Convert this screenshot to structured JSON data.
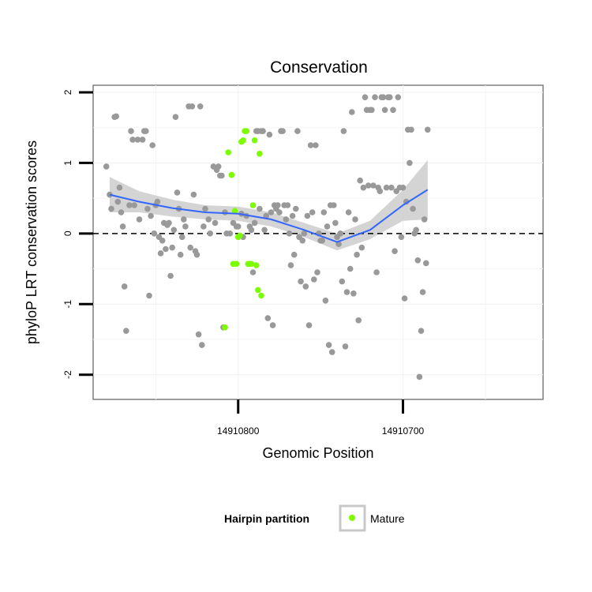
{
  "chart_data": {
    "type": "scatter",
    "title": "Conservation",
    "xlabel": "Genomic Position",
    "ylabel": "phyloP LRT conservation scores",
    "x_reversed": true,
    "xlim": [
      14910888,
      14910615
    ],
    "ylim": [
      -2.35,
      2.1
    ],
    "x_ticks": [
      14910800,
      14910700
    ],
    "x_tick_labels": [
      "14910800",
      "14910700"
    ],
    "y_ticks": [
      -2,
      -1,
      0,
      1,
      2
    ],
    "y_tick_labels": [
      "-2",
      "-1",
      "0",
      "1",
      "2"
    ],
    "reference_line": {
      "y": 0,
      "style": "dashed"
    },
    "grid": true,
    "colors": {
      "other": "#999999",
      "mature": "#7cfc00",
      "smooth": "#3366ff",
      "band": "#cccccc"
    },
    "legend": {
      "title": "Hairpin partition",
      "position": "bottom",
      "entries": [
        "Mature"
      ]
    },
    "series": [
      {
        "group": "other",
        "points": [
          [
            14910880,
            0.95
          ],
          [
            14910878,
            0.55
          ],
          [
            14910877,
            0.35
          ],
          [
            14910875,
            1.65
          ],
          [
            14910874,
            1.66
          ],
          [
            14910873,
            0.45
          ],
          [
            14910872,
            0.65
          ],
          [
            14910871,
            0.3
          ],
          [
            14910870,
            0.1
          ],
          [
            14910869,
            -0.75
          ],
          [
            14910868,
            -1.38
          ],
          [
            14910866,
            0.4
          ],
          [
            14910865,
            1.45
          ],
          [
            14910864,
            1.33
          ],
          [
            14910863,
            0.4
          ],
          [
            14910861,
            1.33
          ],
          [
            14910860,
            0.2
          ],
          [
            14910858,
            1.33
          ],
          [
            14910857,
            1.45
          ],
          [
            14910856,
            1.45
          ],
          [
            14910855,
            0.35
          ],
          [
            14910854,
            -0.88
          ],
          [
            14910853,
            0.25
          ],
          [
            14910852,
            1.25
          ],
          [
            14910851,
            0.0
          ],
          [
            14910850,
            0.4
          ],
          [
            14910849,
            0.45
          ],
          [
            14910848,
            -0.05
          ],
          [
            14910847,
            -0.28
          ],
          [
            14910846,
            -0.1
          ],
          [
            14910845,
            0.15
          ],
          [
            14910844,
            -0.22
          ],
          [
            14910843,
            0.12
          ],
          [
            14910842,
            0.15
          ],
          [
            14910841,
            -0.6
          ],
          [
            14910840,
            -0.2
          ],
          [
            14910839,
            0.05
          ],
          [
            14910838,
            1.65
          ],
          [
            14910837,
            0.58
          ],
          [
            14910836,
            0.35
          ],
          [
            14910835,
            -0.3
          ],
          [
            14910834,
            -0.05
          ],
          [
            14910833,
            0.2
          ],
          [
            14910832,
            0.1
          ],
          [
            14910830,
            1.8
          ],
          [
            14910829,
            -0.2
          ],
          [
            14910828,
            1.8
          ],
          [
            14910827,
            0.55
          ],
          [
            14910826,
            -0.25
          ],
          [
            14910825,
            -0.3
          ],
          [
            14910824,
            -1.43
          ],
          [
            14910823,
            1.8
          ],
          [
            14910822,
            -1.58
          ],
          [
            14910821,
            0.1
          ],
          [
            14910820,
            0.35
          ],
          [
            14910818,
            0.2
          ],
          [
            14910817,
            0.0
          ],
          [
            14910815,
            0.95
          ],
          [
            14910814,
            0.15
          ],
          [
            14910813,
            0.9
          ],
          [
            14910812,
            0.95
          ],
          [
            14910811,
            0.82
          ],
          [
            14910810,
            0.82
          ],
          [
            14910809,
            -1.33
          ],
          [
            14910808,
            0.3
          ],
          [
            14910807,
            0.0
          ],
          [
            14910805,
            0.0
          ],
          [
            14910803,
            0.15
          ],
          [
            14910801,
            0.1
          ],
          [
            14910800,
            0.1
          ],
          [
            14910798,
            0.28
          ],
          [
            14910797,
            -0.05
          ],
          [
            14910795,
            0.25
          ],
          [
            14910793,
            0.1
          ],
          [
            14910792,
            0.05
          ],
          [
            14910791,
            -0.55
          ],
          [
            14910790,
            0.15
          ],
          [
            14910789,
            1.45
          ],
          [
            14910788,
            1.45
          ],
          [
            14910787,
            0.35
          ],
          [
            14910786,
            1.45
          ],
          [
            14910785,
            1.45
          ],
          [
            14910784,
            0.05
          ],
          [
            14910783,
            0.25
          ],
          [
            14910782,
            -1.2
          ],
          [
            14910781,
            1.4
          ],
          [
            14910780,
            0.3
          ],
          [
            14910779,
            -1.3
          ],
          [
            14910778,
            0.4
          ],
          [
            14910777,
            0.35
          ],
          [
            14910776,
            0.4
          ],
          [
            14910775,
            0.3
          ],
          [
            14910774,
            1.45
          ],
          [
            14910773,
            1.45
          ],
          [
            14910772,
            0.4
          ],
          [
            14910771,
            0.2
          ],
          [
            14910770,
            0.4
          ],
          [
            14910769,
            0.0
          ],
          [
            14910768,
            -0.45
          ],
          [
            14910767,
            0.25
          ],
          [
            14910766,
            -0.3
          ],
          [
            14910765,
            0.35
          ],
          [
            14910764,
            1.45
          ],
          [
            14910763,
            -0.05
          ],
          [
            14910762,
            -0.68
          ],
          [
            14910761,
            -0.1
          ],
          [
            14910760,
            0.0
          ],
          [
            14910759,
            -0.75
          ],
          [
            14910758,
            0.25
          ],
          [
            14910757,
            -1.3
          ],
          [
            14910756,
            1.25
          ],
          [
            14910755,
            0.3
          ],
          [
            14910754,
            -0.65
          ],
          [
            14910753,
            1.25
          ],
          [
            14910752,
            -0.55
          ],
          [
            14910751,
            0.0
          ],
          [
            14910750,
            -0.1
          ],
          [
            14910749,
            -0.1
          ],
          [
            14910748,
            0.3
          ],
          [
            14910747,
            -0.95
          ],
          [
            14910746,
            0.1
          ],
          [
            14910745,
            -1.58
          ],
          [
            14910744,
            0.4
          ],
          [
            14910743,
            -1.68
          ],
          [
            14910742,
            0.4
          ],
          [
            14910741,
            0.15
          ],
          [
            14910740,
            -0.05
          ],
          [
            14910739,
            -0.15
          ],
          [
            14910738,
            0.0
          ],
          [
            14910737,
            -0.68
          ],
          [
            14910736,
            1.45
          ],
          [
            14910735,
            -1.6
          ],
          [
            14910734,
            -0.83
          ],
          [
            14910733,
            0.3
          ],
          [
            14910732,
            -0.5
          ],
          [
            14910731,
            1.72
          ],
          [
            14910730,
            -0.85
          ],
          [
            14910729,
            0.2
          ],
          [
            14910728,
            -0.3
          ],
          [
            14910727,
            -1.23
          ],
          [
            14910726,
            0.75
          ],
          [
            14910725,
            -0.2
          ],
          [
            14910724,
            0.65
          ],
          [
            14910723,
            1.93
          ],
          [
            14910722,
            1.75
          ],
          [
            14910721,
            0.68
          ],
          [
            14910720,
            1.75
          ],
          [
            14910719,
            1.75
          ],
          [
            14910718,
            0.68
          ],
          [
            14910717,
            1.93
          ],
          [
            14910716,
            -0.55
          ],
          [
            14910715,
            0.65
          ],
          [
            14910714,
            0.6
          ],
          [
            14910713,
            1.93
          ],
          [
            14910712,
            1.93
          ],
          [
            14910711,
            1.75
          ],
          [
            14910710,
            0.65
          ],
          [
            14910709,
            1.93
          ],
          [
            14910708,
            1.93
          ],
          [
            14910707,
            0.65
          ],
          [
            14910706,
            1.75
          ],
          [
            14910705,
            -0.25
          ],
          [
            14910704,
            0.6
          ],
          [
            14910703,
            1.93
          ],
          [
            14910702,
            0.65
          ],
          [
            14910701,
            -0.05
          ],
          [
            14910700,
            0.65
          ],
          [
            14910699,
            -0.92
          ],
          [
            14910698,
            0.45
          ],
          [
            14910697,
            1.47
          ],
          [
            14910696,
            1.0
          ],
          [
            14910695,
            1.47
          ],
          [
            14910694,
            0.35
          ],
          [
            14910693,
            0.0
          ],
          [
            14910692,
            0.05
          ],
          [
            14910691,
            -0.38
          ],
          [
            14910690,
            -2.03
          ],
          [
            14910689,
            -1.38
          ],
          [
            14910688,
            -0.83
          ],
          [
            14910687,
            0.2
          ],
          [
            14910686,
            -0.42
          ],
          [
            14910685,
            1.47
          ]
        ]
      },
      {
        "group": "Mature",
        "points": [
          [
            14910806,
            1.15
          ],
          [
            14910804,
            0.83
          ],
          [
            14910802,
            0.32
          ],
          [
            14910800,
            -0.05
          ],
          [
            14910799,
            -0.03
          ],
          [
            14910798,
            1.3
          ],
          [
            14910797,
            1.32
          ],
          [
            14910796,
            1.45
          ],
          [
            14910795,
            1.45
          ],
          [
            14910794,
            -0.43
          ],
          [
            14910793,
            -0.43
          ],
          [
            14910792,
            -0.43
          ],
          [
            14910791,
            0.4
          ],
          [
            14910790,
            1.32
          ],
          [
            14910789,
            -0.45
          ],
          [
            14910788,
            -0.8
          ],
          [
            14910787,
            1.13
          ],
          [
            14910786,
            -0.88
          ],
          [
            14910803,
            -0.43
          ],
          [
            14910801,
            -0.43
          ],
          [
            14910808,
            -1.33
          ]
        ]
      }
    ],
    "smooth": {
      "x": [
        14910878,
        14910860,
        14910840,
        14910820,
        14910800,
        14910780,
        14910760,
        14910740,
        14910720,
        14910700,
        14910685
      ],
      "y": [
        0.55,
        0.45,
        0.36,
        0.3,
        0.28,
        0.2,
        0.05,
        -0.12,
        0.05,
        0.4,
        0.62
      ],
      "se": [
        0.25,
        0.15,
        0.12,
        0.1,
        0.1,
        0.1,
        0.1,
        0.12,
        0.13,
        0.22,
        0.42
      ]
    }
  }
}
